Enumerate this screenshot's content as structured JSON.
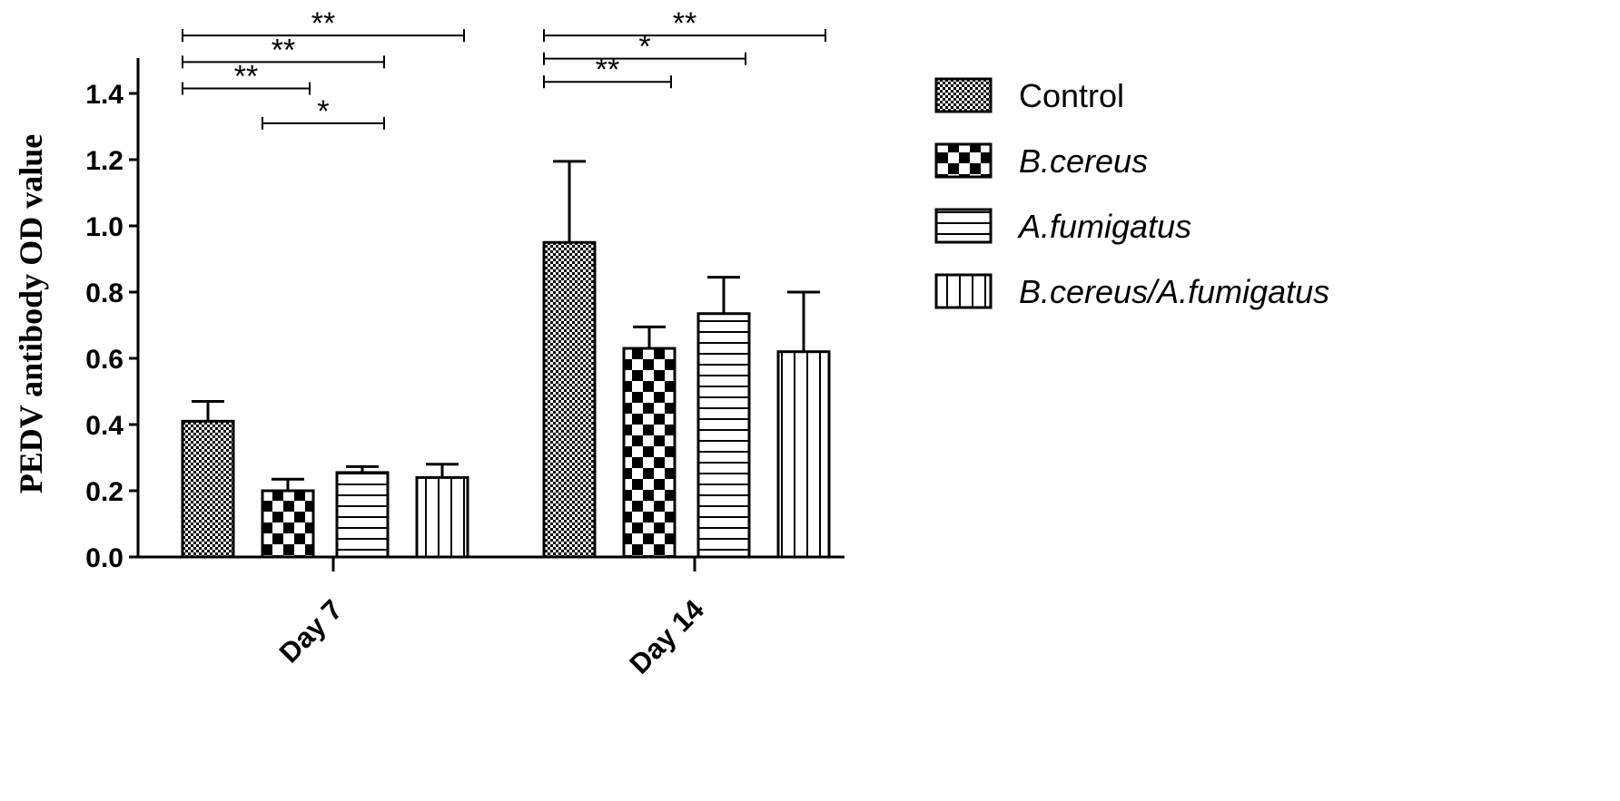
{
  "chart_data": {
    "type": "bar",
    "title": "",
    "xlabel": "",
    "ylabel": "PEDV antibody OD value",
    "ylim": [
      0,
      1.5
    ],
    "yticks": [
      "0.0",
      "0.2",
      "0.4",
      "0.6",
      "0.8",
      "1.0",
      "1.2",
      "1.4"
    ],
    "categories": [
      "Day 7",
      "Day 14"
    ],
    "series": [
      {
        "name": "Control",
        "italic": false,
        "pattern": "fine-dots",
        "values": [
          0.41,
          0.95
        ],
        "errors": [
          0.06,
          0.245
        ]
      },
      {
        "name": "B.cereus",
        "italic": true,
        "pattern": "checker",
        "values": [
          0.2,
          0.63
        ],
        "errors": [
          0.035,
          0.065
        ]
      },
      {
        "name": "A.fumigatus",
        "italic": true,
        "pattern": "horizontal-lines",
        "values": [
          0.255,
          0.735
        ],
        "errors": [
          0.018,
          0.11
        ]
      },
      {
        "name": "B.cereus/A.fumigatus",
        "italic": true,
        "pattern": "vertical-lines",
        "values": [
          0.24,
          0.62
        ],
        "errors": [
          0.04,
          0.18
        ]
      }
    ],
    "grid": false,
    "legend_position": "right",
    "significance": [
      {
        "category": 0,
        "from": 0,
        "to": 3,
        "label": "**",
        "level": 1.575
      },
      {
        "category": 0,
        "from": 0,
        "to": 2,
        "label": "**",
        "level": 1.495
      },
      {
        "category": 0,
        "from": 0,
        "to": 1,
        "label": "**",
        "level": 1.415
      },
      {
        "category": 0,
        "from": 1,
        "to": 2,
        "label": "*",
        "level": 1.31
      },
      {
        "category": 1,
        "from": 0,
        "to": 3,
        "label": "**",
        "level": 1.575
      },
      {
        "category": 1,
        "from": 0,
        "to": 2,
        "label": "*",
        "level": 1.505
      },
      {
        "category": 1,
        "from": 0,
        "to": 1,
        "label": "**",
        "level": 1.435
      }
    ]
  }
}
